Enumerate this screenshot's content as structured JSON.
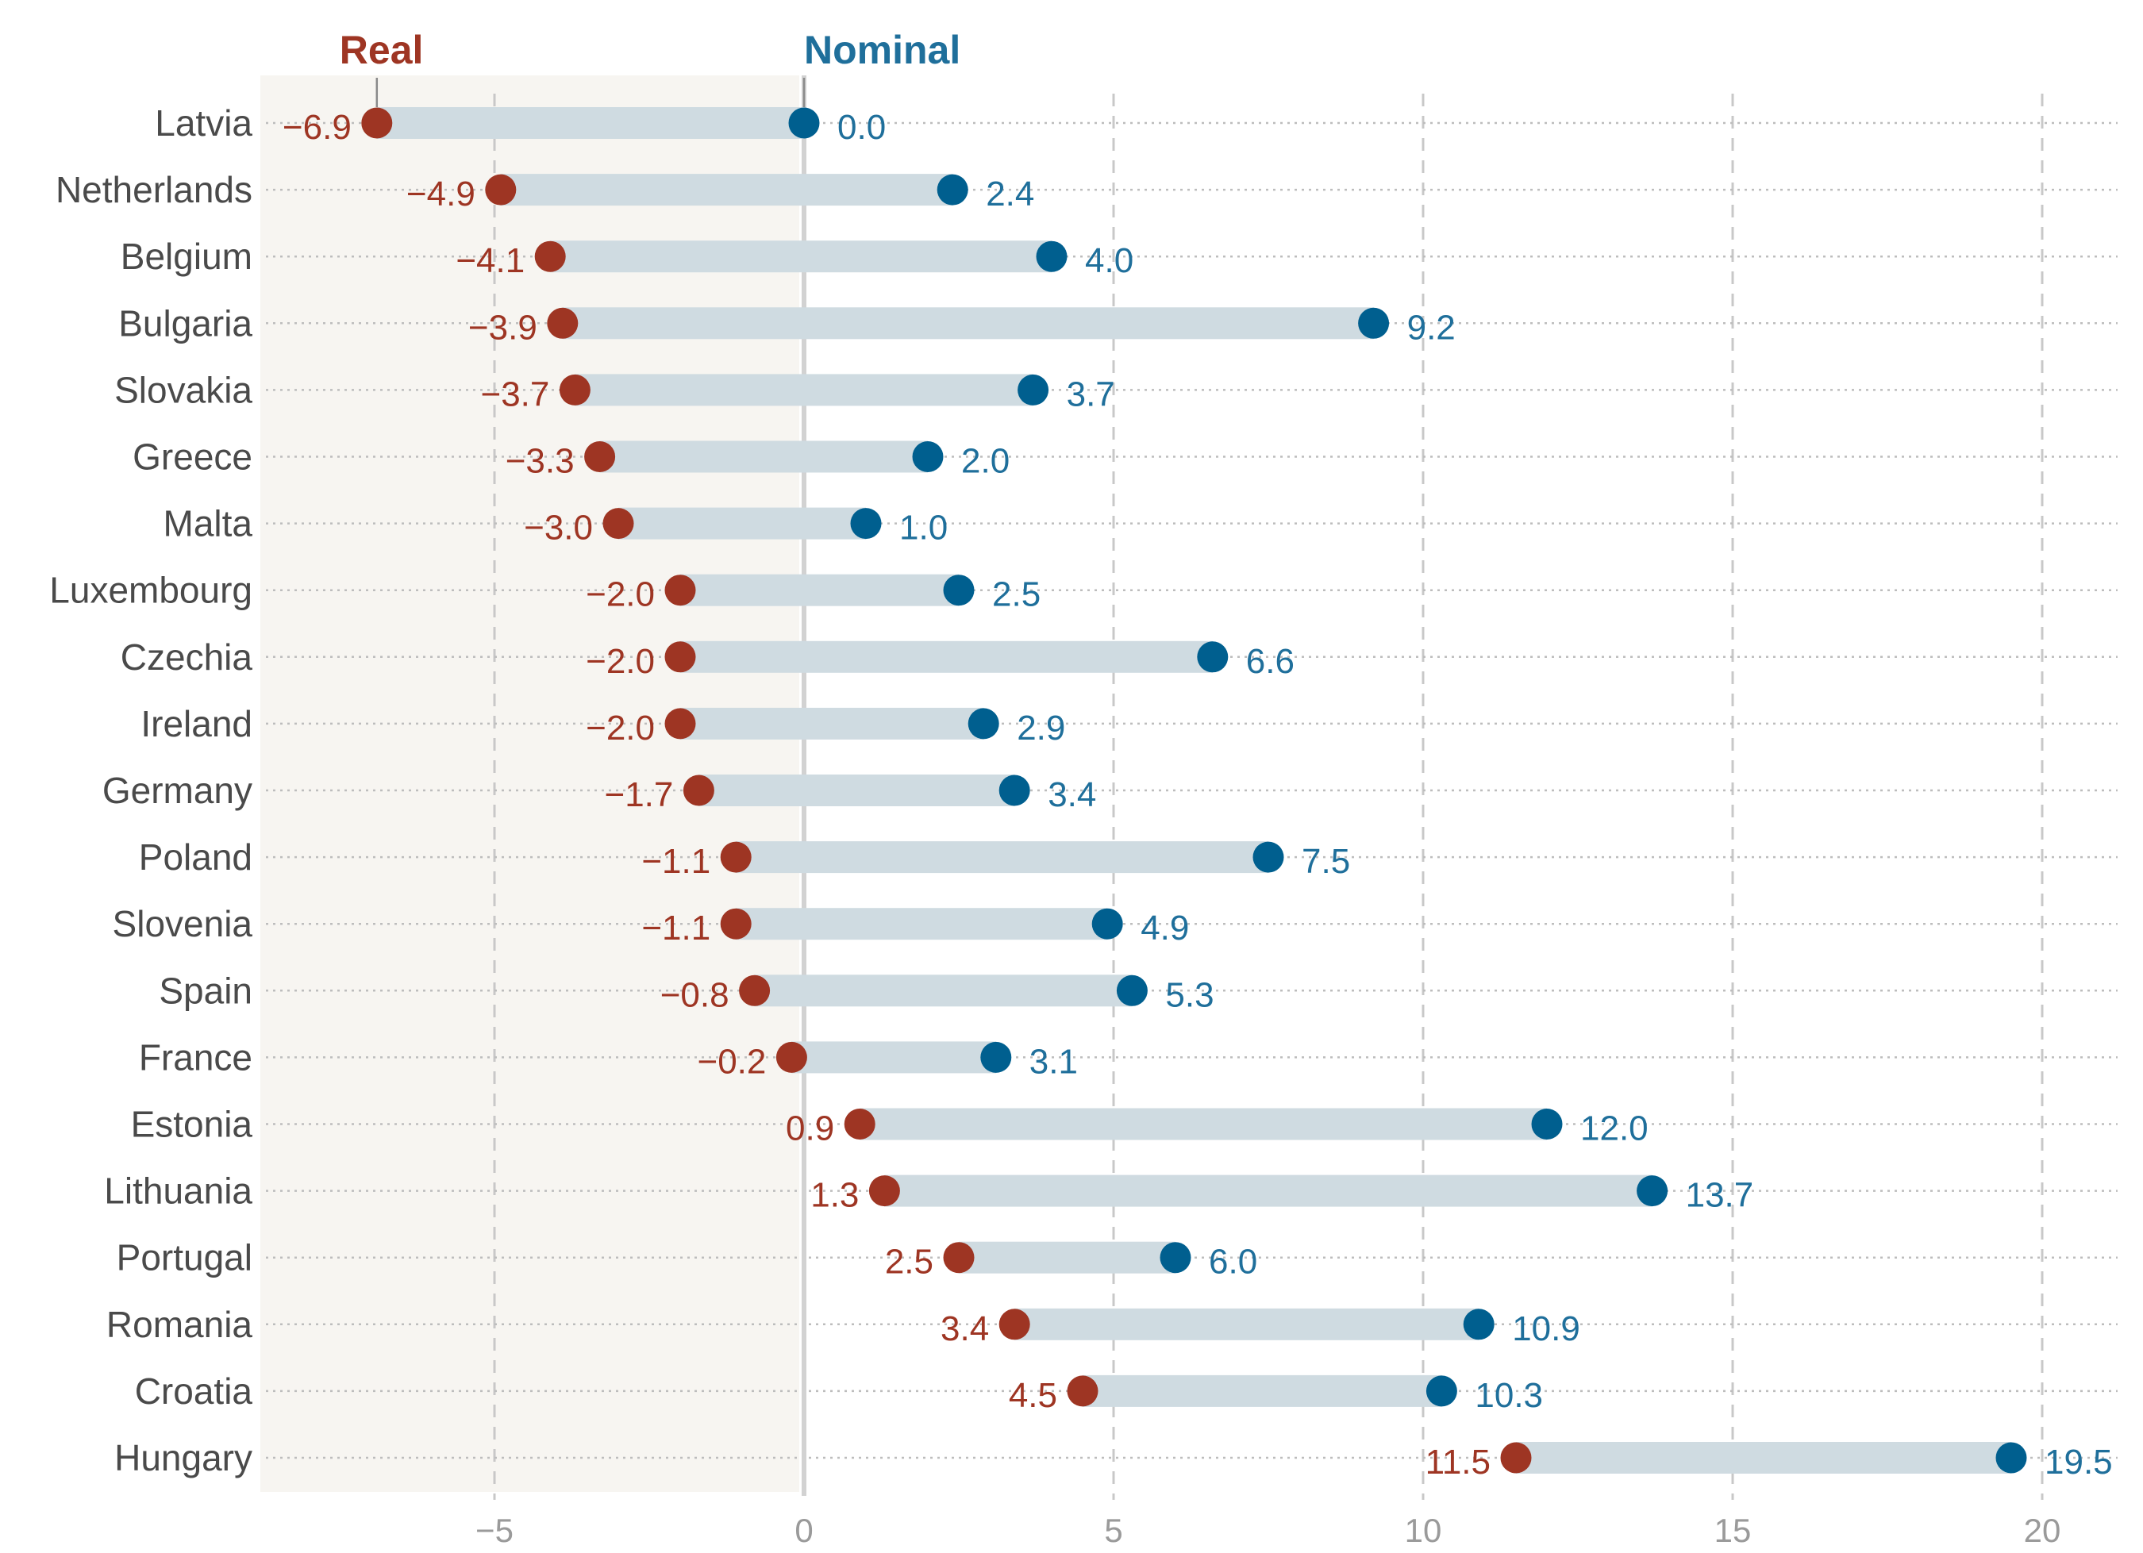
{
  "chart_data": {
    "type": "dot-range",
    "legend": {
      "real_label": "Real",
      "nominal_label": "Nominal"
    },
    "colors": {
      "real": "#9e3523",
      "nominal": "#005f8f",
      "range_bar": "#cfdbe1",
      "negative_shading": "#f7f5f1"
    },
    "xlim": [
      -9,
      21
    ],
    "x_ticks": [
      {
        "value": -5,
        "label": "−5"
      },
      {
        "value": 0,
        "label": "0"
      },
      {
        "value": 5,
        "label": "5"
      },
      {
        "value": 10,
        "label": "10"
      },
      {
        "value": 15,
        "label": "15"
      },
      {
        "value": 20,
        "label": "20"
      }
    ],
    "countries": [
      {
        "name": "Latvia",
        "real": -6.9,
        "nominal": 0.0,
        "real_label": "−6.9",
        "nominal_label": "0.0"
      },
      {
        "name": "Netherlands",
        "real": -4.9,
        "nominal": 2.4,
        "real_label": "−4.9",
        "nominal_label": "2.4"
      },
      {
        "name": "Belgium",
        "real": -4.1,
        "nominal": 4.0,
        "real_label": "−4.1",
        "nominal_label": "4.0"
      },
      {
        "name": "Bulgaria",
        "real": -3.9,
        "nominal": 9.2,
        "real_label": "−3.9",
        "nominal_label": "9.2"
      },
      {
        "name": "Slovakia",
        "real": -3.7,
        "nominal": 3.7,
        "real_label": "−3.7",
        "nominal_label": "3.7"
      },
      {
        "name": "Greece",
        "real": -3.3,
        "nominal": 2.0,
        "real_label": "−3.3",
        "nominal_label": "2.0"
      },
      {
        "name": "Malta",
        "real": -3.0,
        "nominal": 1.0,
        "real_label": "−3.0",
        "nominal_label": "1.0"
      },
      {
        "name": "Luxembourg",
        "real": -2.0,
        "nominal": 2.5,
        "real_label": "−2.0",
        "nominal_label": "2.5"
      },
      {
        "name": "Czechia",
        "real": -2.0,
        "nominal": 6.6,
        "real_label": "−2.0",
        "nominal_label": "6.6"
      },
      {
        "name": "Ireland",
        "real": -2.0,
        "nominal": 2.9,
        "real_label": "−2.0",
        "nominal_label": "2.9"
      },
      {
        "name": "Germany",
        "real": -1.7,
        "nominal": 3.4,
        "real_label": "−1.7",
        "nominal_label": "3.4"
      },
      {
        "name": "Poland",
        "real": -1.1,
        "nominal": 7.5,
        "real_label": "−1.1",
        "nominal_label": "7.5"
      },
      {
        "name": "Slovenia",
        "real": -1.1,
        "nominal": 4.9,
        "real_label": "−1.1",
        "nominal_label": "4.9"
      },
      {
        "name": "Spain",
        "real": -0.8,
        "nominal": 5.3,
        "real_label": "−0.8",
        "nominal_label": "5.3"
      },
      {
        "name": "France",
        "real": -0.2,
        "nominal": 3.1,
        "real_label": "−0.2",
        "nominal_label": "3.1"
      },
      {
        "name": "Estonia",
        "real": 0.9,
        "nominal": 12.0,
        "real_label": "0.9",
        "nominal_label": "12.0"
      },
      {
        "name": "Lithuania",
        "real": 1.3,
        "nominal": 13.7,
        "real_label": "1.3",
        "nominal_label": "13.7"
      },
      {
        "name": "Portugal",
        "real": 2.5,
        "nominal": 6.0,
        "real_label": "2.5",
        "nominal_label": "6.0"
      },
      {
        "name": "Romania",
        "real": 3.4,
        "nominal": 10.9,
        "real_label": "3.4",
        "nominal_label": "10.9"
      },
      {
        "name": "Croatia",
        "real": 4.5,
        "nominal": 10.3,
        "real_label": "4.5",
        "nominal_label": "10.3"
      },
      {
        "name": "Hungary",
        "real": 11.5,
        "nominal": 19.5,
        "real_label": "11.5",
        "nominal_label": "19.5"
      }
    ]
  }
}
